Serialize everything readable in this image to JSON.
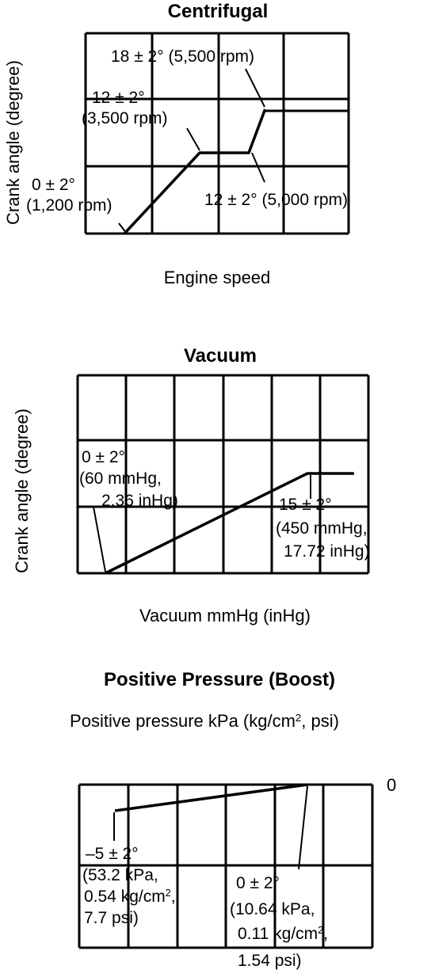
{
  "chart_data": [
    {
      "type": "line",
      "title": "Centrifugal",
      "xlabel": "Engine speed",
      "ylabel": "Crank angle (degree)",
      "series": [
        {
          "x": [
            1200,
            3500,
            5000,
            5500
          ],
          "y": [
            0,
            12,
            12,
            18
          ]
        }
      ],
      "annotations": [
        {
          "lines": [
            "18 ± 2° (5,500 rpm)"
          ]
        },
        {
          "lines": [
            "12 ± 2°",
            "(3,500 rpm)"
          ]
        },
        {
          "lines": [
            "0 ± 2°",
            "(1,200 rpm)"
          ]
        },
        {
          "lines": [
            "12 ± 2° (5,000 rpm)"
          ]
        }
      ]
    },
    {
      "type": "line",
      "title": "Vacuum",
      "xlabel": "Vacuum mmHg (inHg)",
      "ylabel": "Crank angle (degree)",
      "series": [
        {
          "x": [
            60,
            450,
            540
          ],
          "y": [
            0,
            15,
            15
          ]
        }
      ],
      "annotations": [
        {
          "lines": [
            "0 ± 2°",
            "(60 mmHg,",
            "2.36 inHg)"
          ]
        },
        {
          "lines": [
            "15 ± 2°",
            "(450 mmHg,",
            "17.72 inHg)"
          ]
        }
      ]
    },
    {
      "type": "line",
      "title": "Positive Pressure (Boost)",
      "xlabel": "Positive pressure kPa (kg/cm2, psi)",
      "ylabel": "",
      "zero_label": "0",
      "series": [
        {
          "x": [
            53.2,
            10.64
          ],
          "y": [
            -5,
            0
          ]
        }
      ],
      "annotations": [
        {
          "lines": [
            "–5 ± 2°",
            "(53.2 kPa,",
            "0.54 kg/cm2,",
            "7.7 psi)"
          ]
        },
        {
          "lines": [
            "0 ± 2°",
            "(10.64 kPa,",
            "0.11 kg/cm2,",
            "1.54 psi)"
          ]
        }
      ]
    }
  ]
}
